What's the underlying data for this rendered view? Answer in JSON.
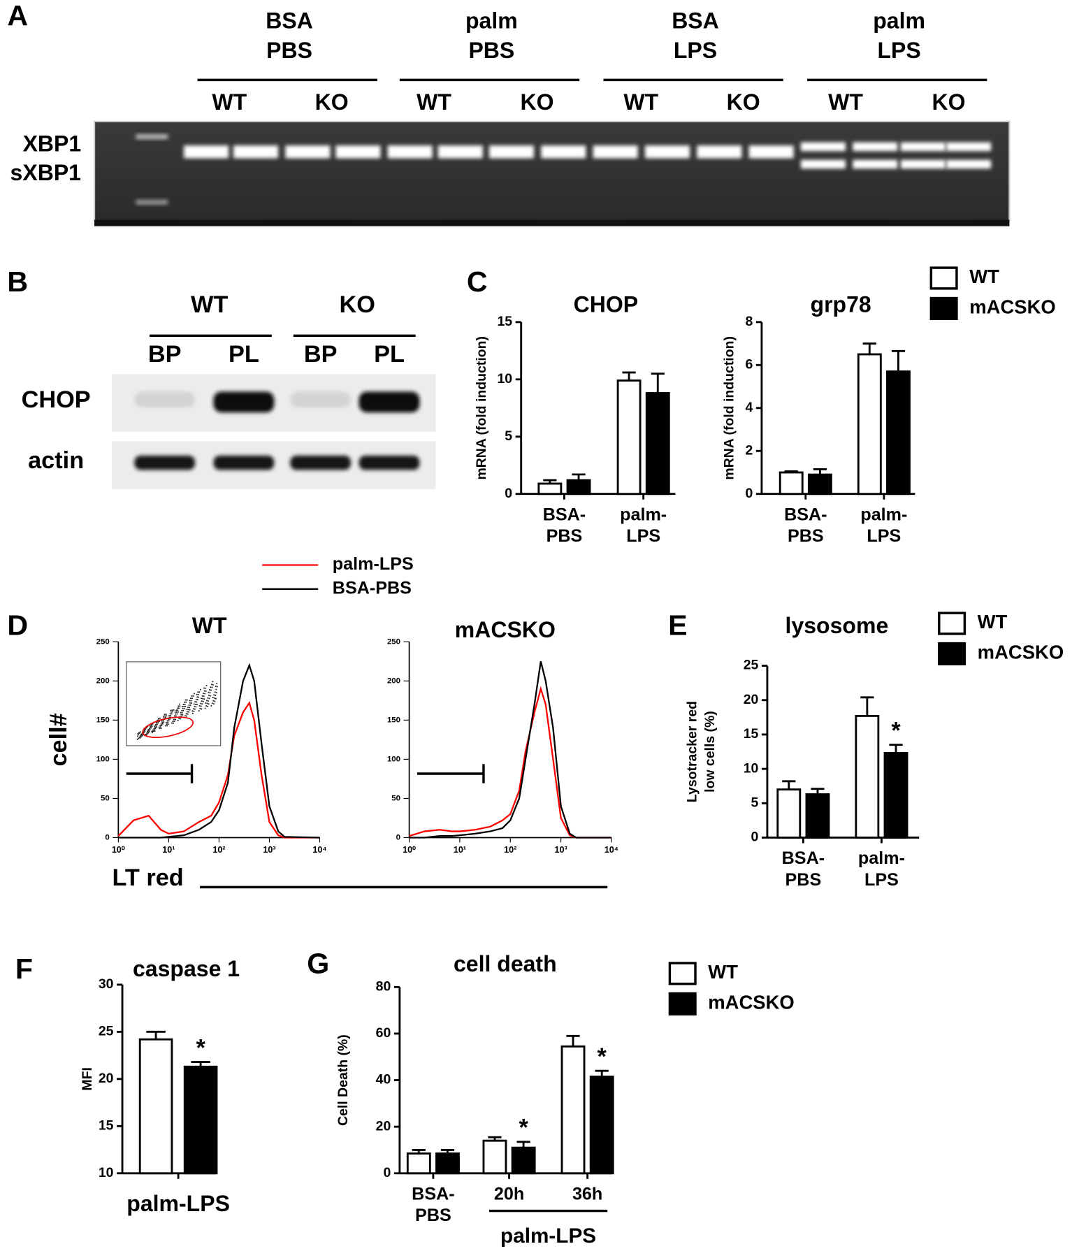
{
  "panel_labels": [
    "A",
    "B",
    "C",
    "D",
    "E",
    "F",
    "G"
  ],
  "gel": {
    "groups": [
      [
        "BSA",
        "PBS"
      ],
      [
        "palm",
        "PBS"
      ],
      [
        "BSA",
        "LPS"
      ],
      [
        "palm",
        "LPS"
      ]
    ],
    "genotypes": [
      "WT",
      "KO",
      "WT",
      "KO",
      "WT",
      "KO",
      "WT",
      "KO"
    ],
    "bands": [
      "XBP1",
      "sXBP1"
    ]
  },
  "blot": {
    "genotypes": [
      "WT",
      "KO"
    ],
    "treatments": [
      "BP",
      "PL",
      "BP",
      "PL"
    ],
    "proteins": [
      "CHOP",
      "actin"
    ]
  },
  "chart_data": [
    {
      "type": "bar",
      "title": "CHOP",
      "ylabel": [
        "mRNA (fold induction)"
      ],
      "categories": [
        [
          "BSA-",
          "PBS"
        ],
        [
          "palm-",
          "LPS"
        ]
      ],
      "series": [
        {
          "name": "WT",
          "color": "#ffffff",
          "values": [
            0.9,
            9.9
          ],
          "errors": [
            0.3,
            0.7
          ]
        },
        {
          "name": "mACSKO",
          "color": "#000000",
          "values": [
            1.2,
            8.8
          ],
          "errors": [
            0.5,
            1.7
          ]
        }
      ],
      "ylim": [
        0,
        15
      ],
      "yticks": [
        0,
        5,
        10,
        15
      ]
    },
    {
      "type": "bar",
      "title": "grp78",
      "ylabel": [
        "mRNA (fold induction)"
      ],
      "categories": [
        [
          "BSA-",
          "PBS"
        ],
        [
          "palm-",
          "LPS"
        ]
      ],
      "series": [
        {
          "color": "#ffffff",
          "values": [
            1.0,
            6.5
          ],
          "errors": [
            0.05,
            0.5
          ]
        },
        {
          "color": "#000000",
          "values": [
            0.9,
            5.7
          ],
          "errors": [
            0.25,
            0.95
          ]
        }
      ],
      "ylim": [
        0,
        8
      ],
      "yticks": [
        0,
        2,
        4,
        6,
        8
      ]
    },
    {
      "type": "line",
      "title": "WT",
      "ylabel": [
        "cell#"
      ],
      "xlabel": "LT red",
      "xscale": "log",
      "x": [
        1,
        2,
        4,
        7,
        10,
        20,
        40,
        70,
        100,
        150,
        200,
        300,
        400,
        500,
        700,
        1000,
        1500,
        2000,
        10000
      ],
      "series": [
        {
          "name": "palm-LPS",
          "color": "#ff0000",
          "values": [
            2,
            22,
            28,
            10,
            5,
            8,
            20,
            28,
            45,
            80,
            130,
            160,
            172,
            150,
            80,
            20,
            3,
            0,
            0
          ]
        },
        {
          "name": "BSA-PBS",
          "color": "#000000",
          "values": [
            0,
            0,
            0,
            0,
            1,
            3,
            10,
            20,
            35,
            70,
            140,
            200,
            220,
            200,
            120,
            40,
            8,
            1,
            0
          ]
        }
      ],
      "xlim": [
        1,
        10000
      ],
      "xticks": [
        {
          "value": 1,
          "label": "10⁰"
        },
        {
          "value": 10,
          "label": "10¹"
        },
        {
          "value": 100,
          "label": "10²"
        },
        {
          "value": 1000,
          "label": "10³"
        },
        {
          "value": 10000,
          "label": "10⁴"
        }
      ],
      "ylim": [
        0,
        250
      ],
      "yticks": [
        0,
        50,
        100,
        150,
        200,
        250
      ]
    },
    {
      "type": "line",
      "title": "mACSKO",
      "xscale": "log",
      "x": [
        1,
        2,
        4,
        7,
        10,
        20,
        40,
        70,
        100,
        150,
        200,
        300,
        400,
        500,
        700,
        1000,
        1500,
        2000,
        10000
      ],
      "series": [
        {
          "color": "#ff0000",
          "values": [
            2,
            8,
            10,
            8,
            8,
            10,
            14,
            22,
            30,
            60,
            110,
            160,
            190,
            170,
            100,
            25,
            3,
            0,
            0
          ]
        },
        {
          "color": "#000000",
          "values": [
            0,
            0,
            2,
            2,
            3,
            5,
            8,
            12,
            22,
            50,
            100,
            170,
            225,
            200,
            140,
            40,
            5,
            0,
            0
          ]
        }
      ],
      "xlim": [
        1,
        10000
      ],
      "xticks": [
        {
          "value": 1,
          "label": "10⁰"
        },
        {
          "value": 10,
          "label": "10¹"
        },
        {
          "value": 100,
          "label": "10²"
        },
        {
          "value": 1000,
          "label": "10³"
        },
        {
          "value": 10000,
          "label": "10⁴"
        }
      ],
      "ylim": [
        0,
        250
      ],
      "yticks": [
        0,
        50,
        100,
        150,
        200,
        250
      ]
    },
    {
      "type": "bar",
      "title": "lysosome",
      "ylabel": [
        "Lysotracker red",
        "low cells (%)"
      ],
      "categories": [
        [
          "BSA-",
          "PBS"
        ],
        [
          "palm-",
          "LPS"
        ]
      ],
      "series": [
        {
          "name": "WT",
          "color": "#ffffff",
          "values": [
            7.0,
            17.7
          ],
          "errors": [
            1.2,
            2.7
          ]
        },
        {
          "name": "mACSKO",
          "color": "#000000",
          "values": [
            6.3,
            12.3
          ],
          "errors": [
            0.8,
            1.2
          ],
          "significance": [
            null,
            "*"
          ]
        }
      ],
      "ylim": [
        0,
        25
      ],
      "yticks": [
        0,
        5,
        10,
        15,
        20,
        25
      ]
    },
    {
      "type": "bar",
      "title": "caspase 1",
      "ylabel": [
        "MFI"
      ],
      "categories": [
        [
          "palm-LPS"
        ]
      ],
      "series": [
        {
          "color": "#ffffff",
          "values": [
            24.2
          ],
          "errors": [
            0.8
          ]
        },
        {
          "color": "#000000",
          "values": [
            21.3
          ],
          "errors": [
            0.5
          ],
          "significance": [
            "*"
          ]
        }
      ],
      "ylim": [
        10,
        30
      ],
      "yticks": [
        10,
        15,
        20,
        25,
        30
      ]
    },
    {
      "type": "bar",
      "title": "cell death",
      "ylabel": [
        "Cell Death (%)"
      ],
      "categories": [
        [
          "BSA-",
          "PBS"
        ],
        [
          "20h"
        ],
        [
          "36h"
        ]
      ],
      "group_label": "palm-LPS",
      "series": [
        {
          "name": "WT",
          "color": "#ffffff",
          "values": [
            8.5,
            14,
            54.5
          ],
          "errors": [
            1.5,
            1.5,
            4.5
          ]
        },
        {
          "name": "mACSKO",
          "color": "#000000",
          "values": [
            8.5,
            11,
            41.5
          ],
          "errors": [
            1.5,
            2.5,
            2.5
          ],
          "significance": [
            null,
            "*",
            "*"
          ]
        }
      ],
      "ylim": [
        0,
        80
      ],
      "yticks": [
        0,
        20,
        40,
        60,
        80
      ]
    }
  ]
}
